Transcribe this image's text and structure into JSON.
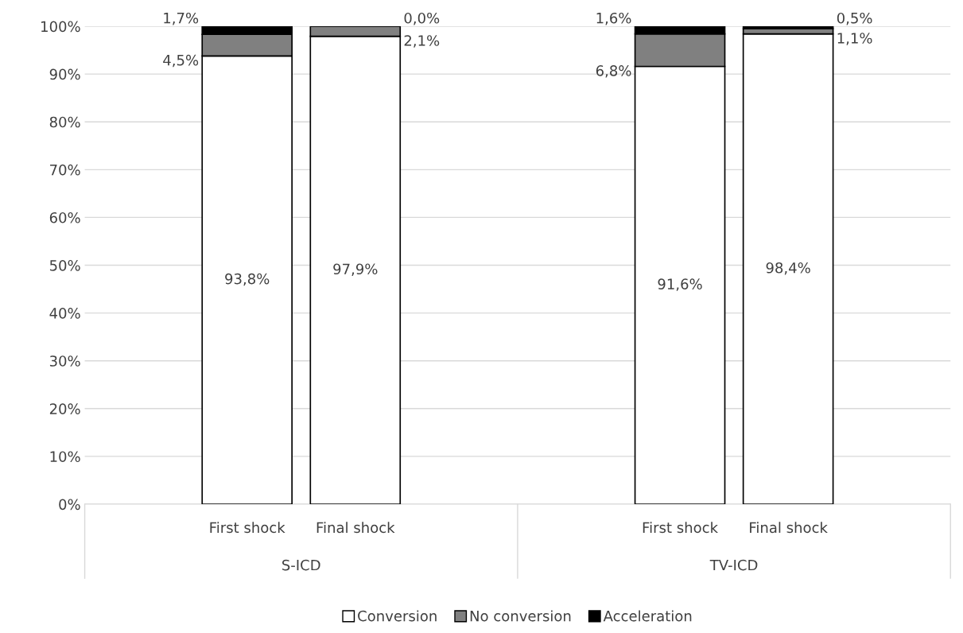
{
  "chart_data": {
    "type": "bar",
    "stacked": true,
    "categories": [
      null,
      "First shock",
      "Final shock",
      null,
      null,
      "First shock",
      "Final shock",
      null
    ],
    "series": [
      {
        "name": "Conversion",
        "color": "#ffffff",
        "values": [
          null,
          93.8,
          97.9,
          null,
          null,
          91.6,
          98.4,
          null
        ]
      },
      {
        "name": "No conversion",
        "color": "#808080",
        "values": [
          null,
          4.5,
          2.1,
          null,
          null,
          6.8,
          1.1,
          null
        ]
      },
      {
        "name": "Acceleration",
        "color": "#000000",
        "values": [
          null,
          1.7,
          0.0,
          null,
          null,
          1.6,
          0.5,
          null
        ]
      }
    ],
    "annotations": [
      "S-ICD",
      "TV-ICD"
    ],
    "ylim": [
      0,
      100
    ],
    "yticks": [
      {
        "value": 0,
        "label": "0%"
      },
      {
        "value": 10,
        "label": "10%"
      },
      {
        "value": 20,
        "label": "20%"
      },
      {
        "value": 30,
        "label": "30%"
      },
      {
        "value": 40,
        "label": "40%"
      },
      {
        "value": 50,
        "label": "50%"
      },
      {
        "value": 60,
        "label": "60%"
      },
      {
        "value": 70,
        "label": "70%"
      },
      {
        "value": 80,
        "label": "80%"
      },
      {
        "value": 90,
        "label": "90%"
      },
      {
        "value": 100,
        "label": "100%"
      }
    ],
    "grid": "y",
    "legend": "bottom",
    "value_labels": [
      [
        null,
        "93,8%",
        "97,9%",
        null,
        null,
        "91,6%",
        "98,4%",
        null
      ],
      [
        null,
        "4,5%",
        "2,1%",
        null,
        null,
        "6,8%",
        "1,1%",
        null
      ],
      [
        null,
        "1,7%",
        "0,0%",
        null,
        null,
        "1,6%",
        "0,5%",
        null
      ]
    ]
  }
}
